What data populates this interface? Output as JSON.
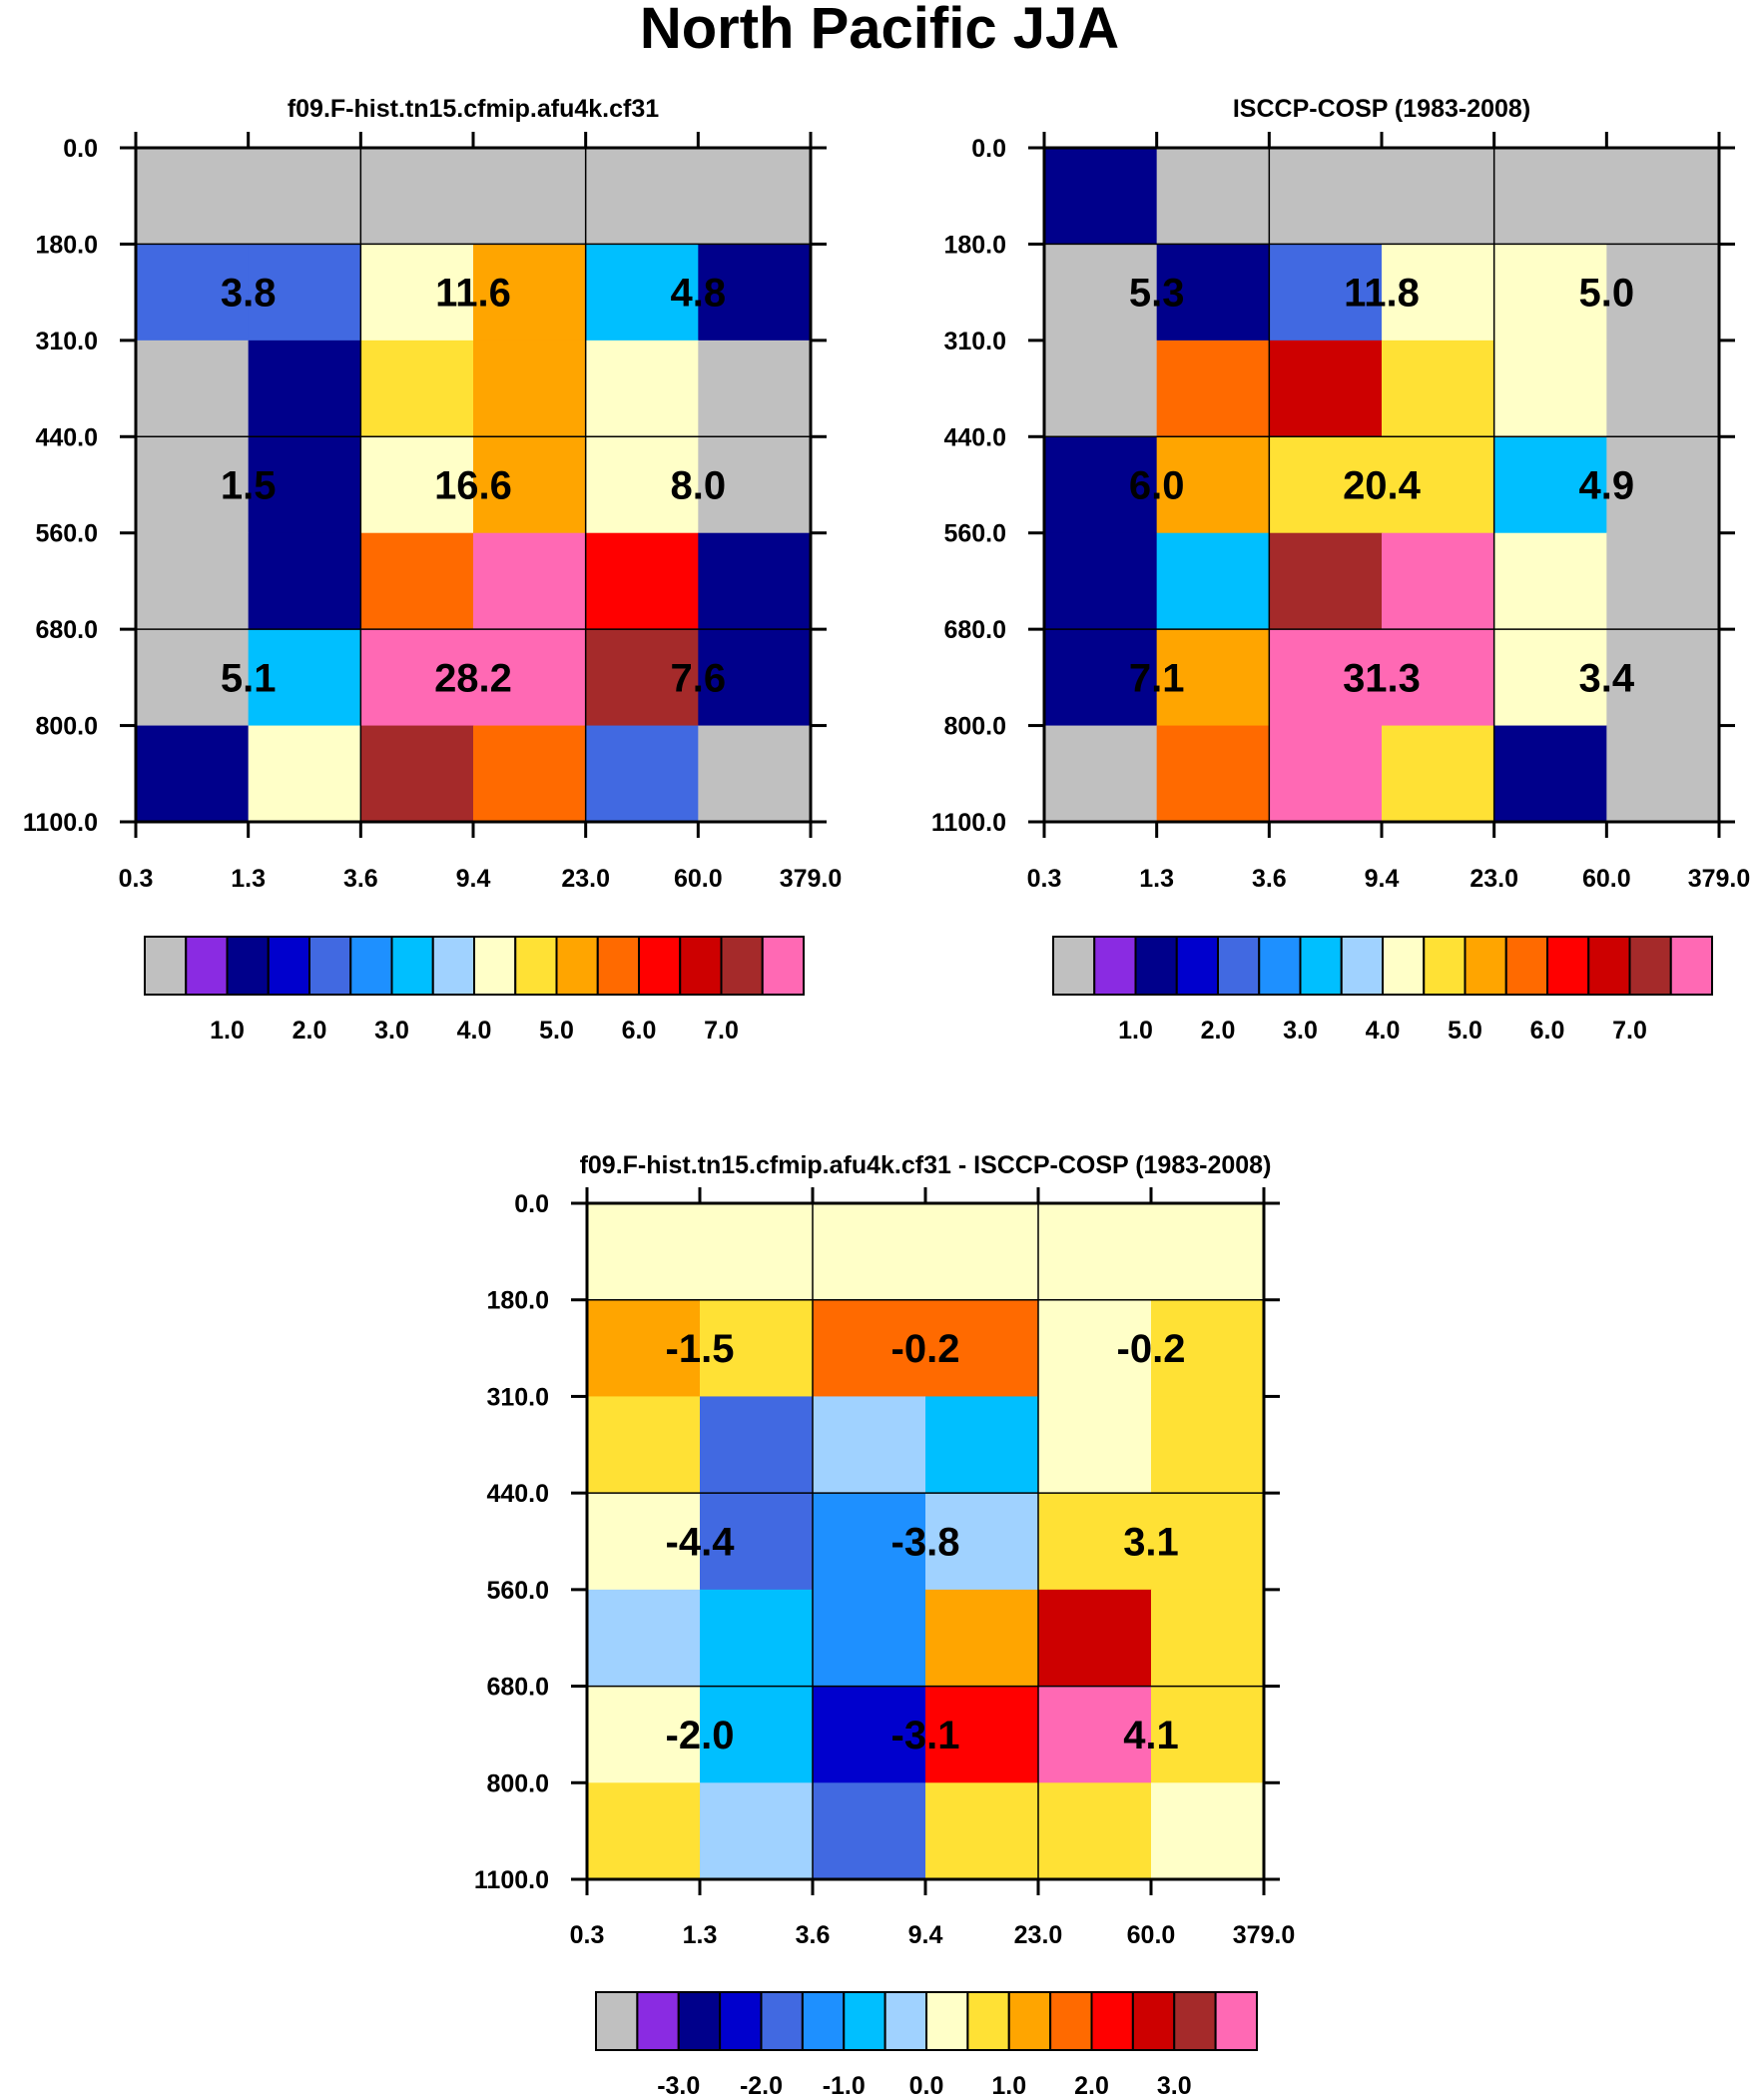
{
  "title": "North Pacific JJA",
  "chart_data": [
    {
      "type": "heatmap",
      "title": "f09.F-hist.tn15.cfmip.afu4k.cf31",
      "x_tick_labels": [
        "0.3",
        "1.3",
        "3.6",
        "9.4",
        "23.0",
        "60.0",
        "379.0"
      ],
      "y_tick_labels": [
        "0.0",
        "180.0",
        "310.0",
        "440.0",
        "560.0",
        "680.0",
        "800.0",
        "1100.0"
      ],
      "cells": [
        [
          "missing",
          "missing",
          "missing",
          "missing",
          "missing",
          "missing"
        ],
        [
          "1.5",
          "1.5",
          "3.5",
          "4.5",
          "2.5",
          "0.5"
        ],
        [
          "missing",
          "0.5",
          "4",
          "4.5",
          "3.5",
          "missing"
        ],
        [
          "missing",
          "0.5",
          "3.5",
          "4.5",
          "3.5",
          "missing"
        ],
        [
          "missing",
          "0.5",
          "5",
          "7.5",
          "5.5",
          "0.5"
        ],
        [
          "missing",
          "2.5",
          "7.5",
          "8",
          "6.5",
          "0.5"
        ],
        [
          "0.5",
          "3.5",
          "6.5",
          "5",
          "1.5",
          "missing"
        ]
      ],
      "group_labels": [
        [
          "3.8",
          "11.6",
          "4.8"
        ],
        [
          "1.5",
          "16.6",
          "8.0"
        ],
        [
          "5.1",
          "28.2",
          "7.6"
        ]
      ],
      "colorbar": {
        "colors": [
          "#c0c0c0",
          "#8a2be2",
          "#00008b",
          "#0000cd",
          "#4169e1",
          "#1e90ff",
          "#00bfff",
          "#a0d2ff",
          "#ffffc8",
          "#ffe135",
          "#ffa500",
          "#ff6a00",
          "#ff0000",
          "#cd0000",
          "#a52a2a",
          "#ff69b4"
        ],
        "tick_labels": [
          "1.0",
          "2.0",
          "3.0",
          "4.0",
          "5.0",
          "6.0",
          "7.0"
        ],
        "tick_positions": [
          2,
          4,
          6,
          8,
          10,
          12,
          14
        ]
      }
    },
    {
      "type": "heatmap",
      "title": "ISCCP-COSP (1983-2008)",
      "x_tick_labels": [
        "0.3",
        "1.3",
        "3.6",
        "9.4",
        "23.0",
        "60.0",
        "379.0"
      ],
      "y_tick_labels": [
        "0.0",
        "180.0",
        "310.0",
        "440.0",
        "560.0",
        "680.0",
        "800.0",
        "1100.0"
      ],
      "cells": [
        [
          "0.5",
          "missing",
          "missing",
          "missing",
          "missing",
          "missing"
        ],
        [
          "missing",
          "0.5",
          "1.5",
          "3.5",
          "3.5",
          "missing"
        ],
        [
          "missing",
          "5",
          "6",
          "4",
          "3.5",
          "missing"
        ],
        [
          "0.5",
          "4.5",
          "4",
          "4",
          "2.5",
          "missing"
        ],
        [
          "0.5",
          "2.5",
          "6.5",
          "7",
          "3.5",
          "missing"
        ],
        [
          "0.5",
          "4.5",
          "8",
          "8",
          "3.5",
          "missing"
        ],
        [
          "missing",
          "5",
          "8",
          "4",
          "0.5",
          "missing"
        ]
      ],
      "group_labels": [
        [
          "5.3",
          "11.8",
          "5.0"
        ],
        [
          "6.0",
          "20.4",
          "4.9"
        ],
        [
          "7.1",
          "31.3",
          "3.4"
        ]
      ],
      "colorbar": {
        "colors": [
          "#c0c0c0",
          "#8a2be2",
          "#00008b",
          "#0000cd",
          "#4169e1",
          "#1e90ff",
          "#00bfff",
          "#a0d2ff",
          "#ffffc8",
          "#ffe135",
          "#ffa500",
          "#ff6a00",
          "#ff0000",
          "#cd0000",
          "#a52a2a",
          "#ff69b4"
        ],
        "tick_labels": [
          "1.0",
          "2.0",
          "3.0",
          "4.0",
          "5.0",
          "6.0",
          "7.0"
        ],
        "tick_positions": [
          2,
          4,
          6,
          8,
          10,
          12,
          14
        ]
      }
    },
    {
      "type": "heatmap",
      "title": "f09.F-hist.tn15.cfmip.afu4k.cf31 - ISCCP-COSP (1983-2008)",
      "x_tick_labels": [
        "0.3",
        "1.3",
        "3.6",
        "9.4",
        "23.0",
        "60.0",
        "379.0"
      ],
      "y_tick_labels": [
        "0.0",
        "180.0",
        "310.0",
        "440.0",
        "560.0",
        "680.0",
        "800.0",
        "1100.0"
      ],
      "cells": [
        [
          "-0.25",
          "-0.25",
          "-0.25",
          "-0.25",
          "-0.25",
          "-0.25"
        ],
        [
          "0.75",
          "0.25",
          "1.25",
          "1.25",
          "-0.25",
          "0.25"
        ],
        [
          "0.25",
          "-2.25",
          "-0.75",
          "-1.25",
          "-0.25",
          "0.25"
        ],
        [
          "-0.25",
          "-2.25",
          "-1.75",
          "-0.75",
          "0.25",
          "0.25"
        ],
        [
          "-0.75",
          "-1.25",
          "-1.75",
          "0.75",
          "2.25",
          "0.25"
        ],
        [
          "-0.25",
          "-1.25",
          "-2.75",
          "1.75",
          "3.25",
          "0.25"
        ],
        [
          "0.25",
          "-0.75",
          "-2.25",
          "0.25",
          "0.25",
          "-0.25"
        ]
      ],
      "group_labels": [
        [
          "-1.5",
          "-0.2",
          "-0.2"
        ],
        [
          "-4.4",
          "-3.8",
          "3.1"
        ],
        [
          "-2.0",
          "-3.1",
          "4.1"
        ]
      ],
      "colorbar": {
        "colors": [
          "#c0c0c0",
          "#8a2be2",
          "#00008b",
          "#0000cd",
          "#4169e1",
          "#1e90ff",
          "#00bfff",
          "#a0d2ff",
          "#ffffc8",
          "#ffe135",
          "#ffa500",
          "#ff6a00",
          "#ff0000",
          "#cd0000",
          "#a52a2a",
          "#ff69b4"
        ],
        "tick_labels": [
          "-3.0",
          "-2.0",
          "-1.0",
          "0.0",
          "1.0",
          "2.0",
          "3.0"
        ],
        "tick_positions": [
          2,
          4,
          6,
          8,
          10,
          12,
          14
        ]
      }
    }
  ]
}
